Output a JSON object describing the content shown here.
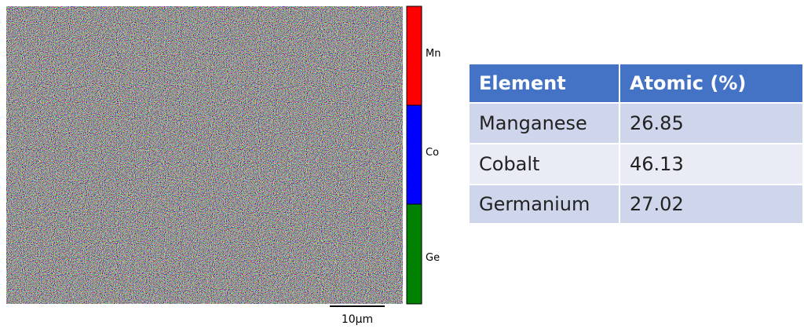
{
  "colorbar": {
    "labels": [
      "Mn",
      "Co",
      "Ge"
    ]
  },
  "scale_bar": {
    "label": "10μm"
  },
  "table": {
    "header": [
      "Element",
      "Atomic (%)"
    ],
    "rows": [
      [
        "Manganese",
        26.85
      ],
      [
        "Cobalt",
        46.13
      ],
      [
        "Germanium",
        27.02
      ]
    ]
  }
}
